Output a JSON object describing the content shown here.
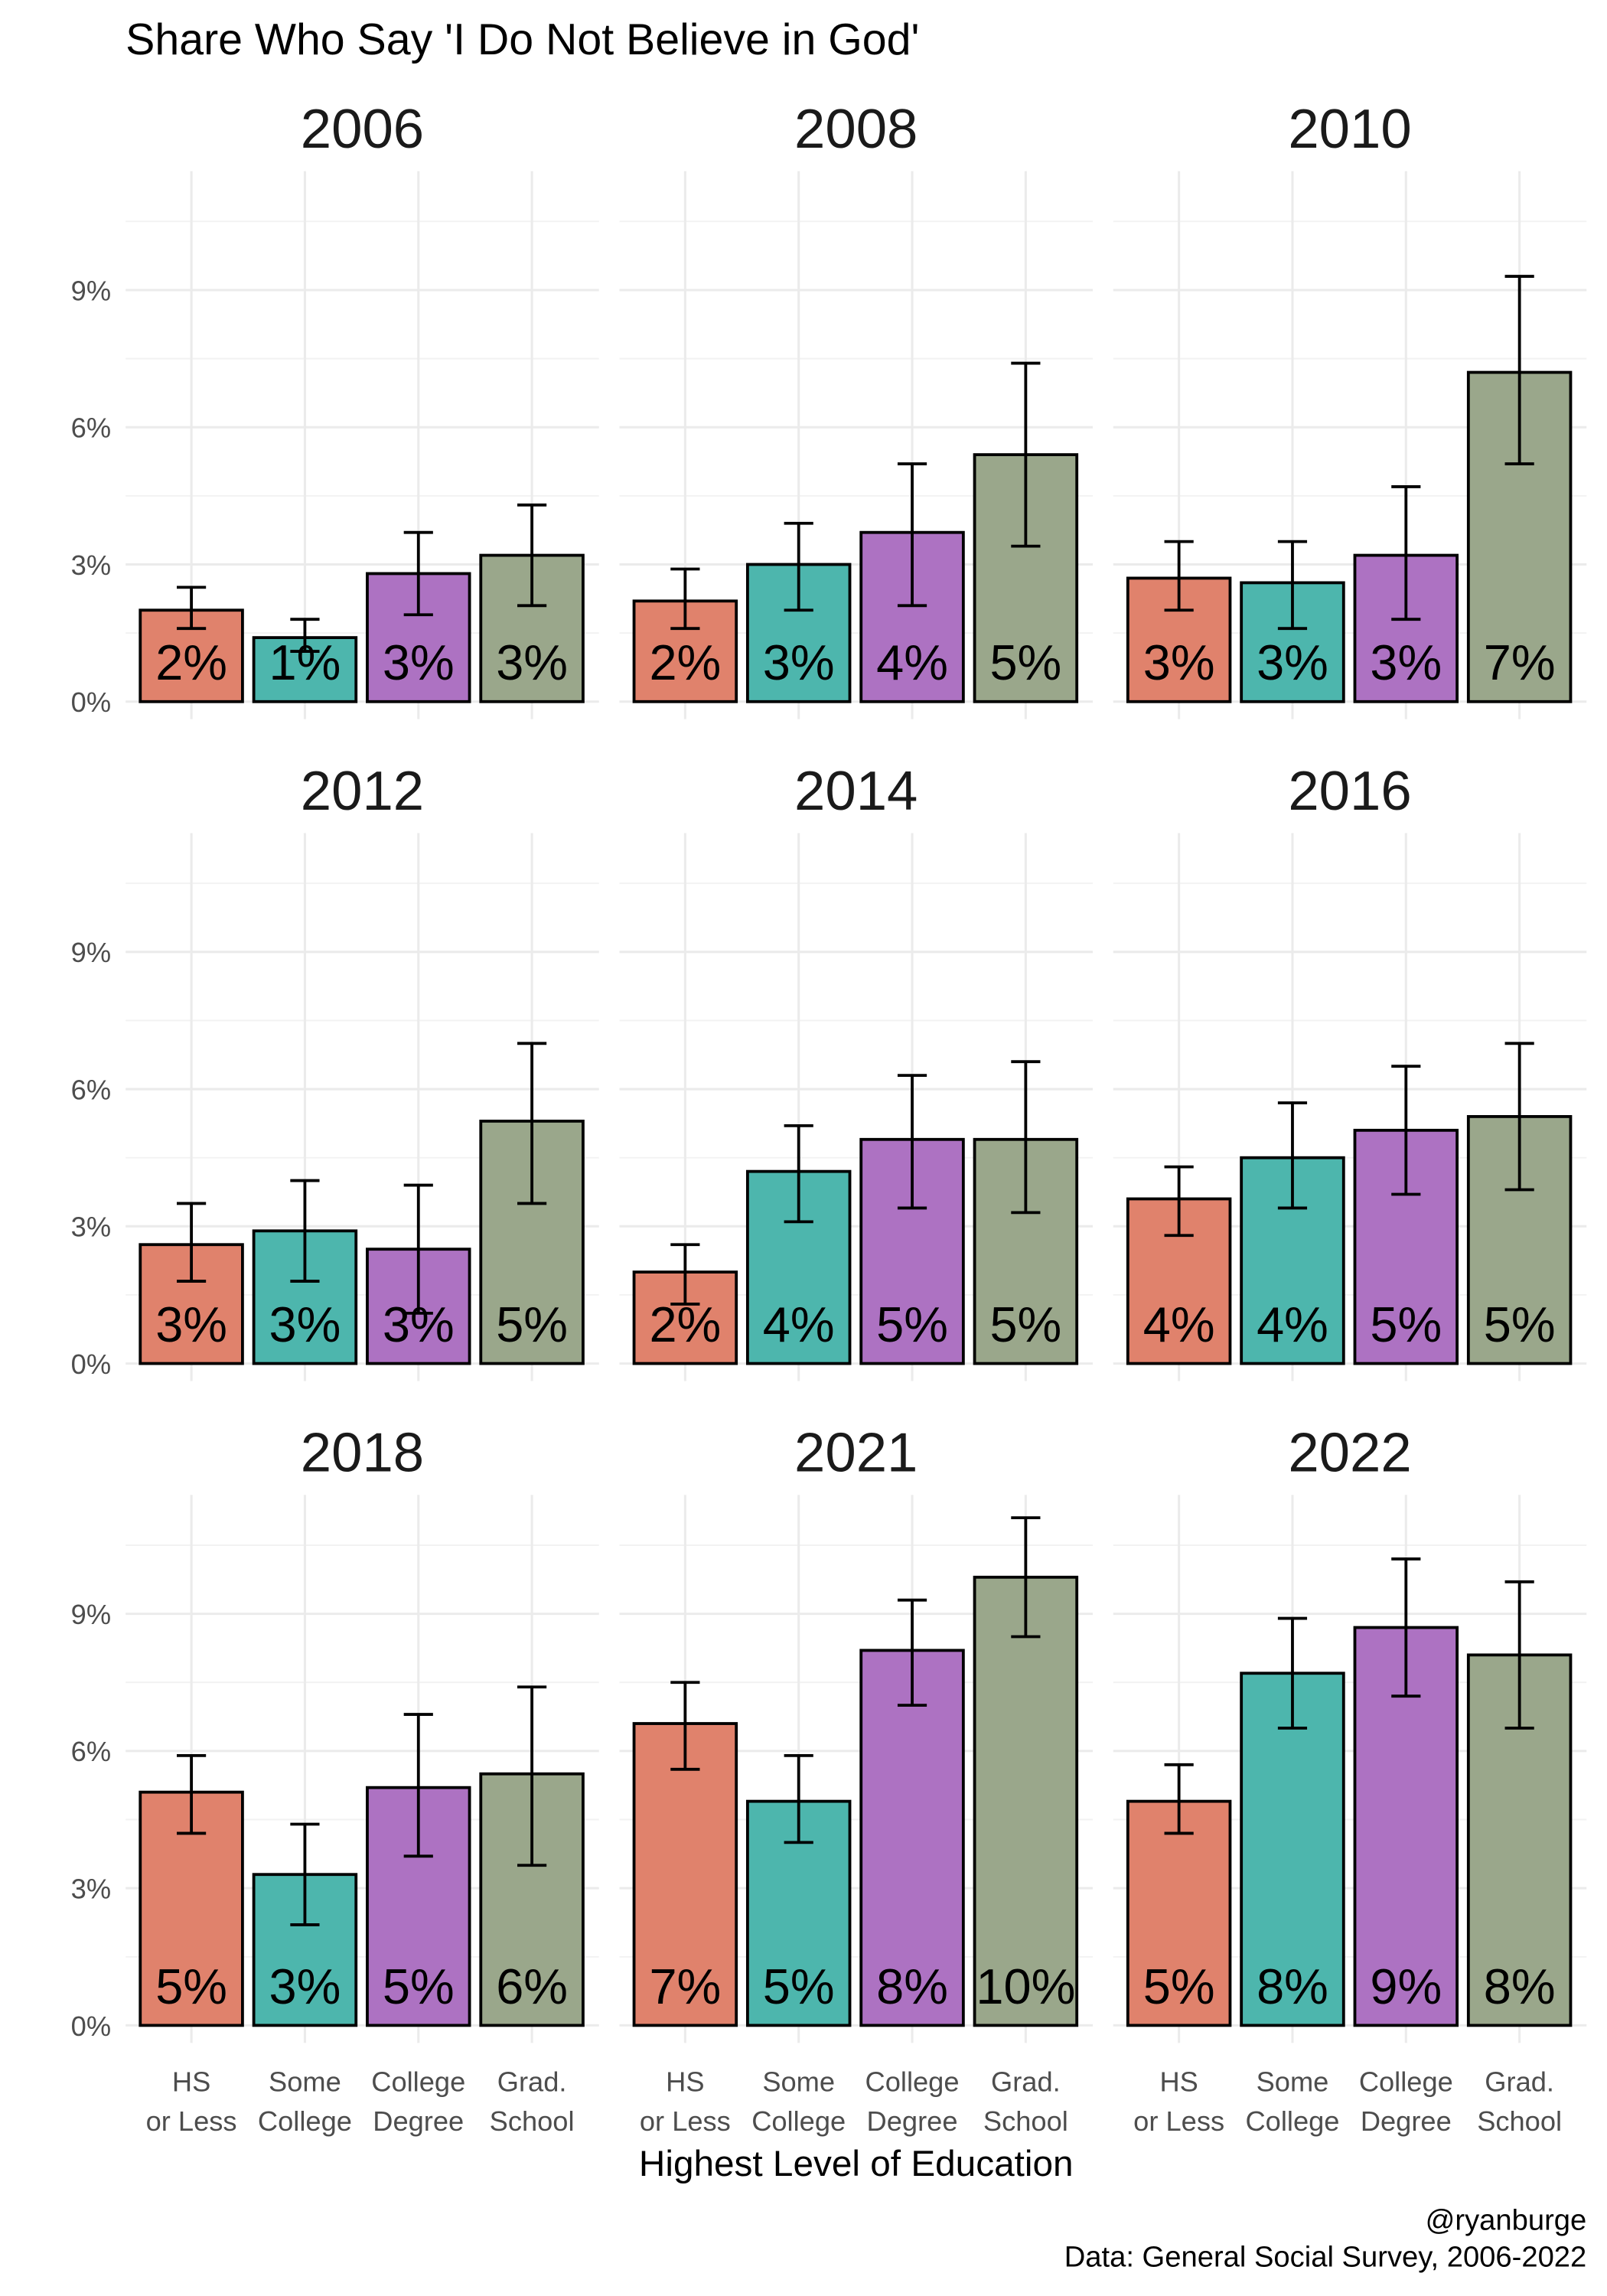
{
  "chart_data": {
    "type": "bar",
    "title": "Share Who Say 'I Do Not Believe in God'",
    "xlabel": "Highest Level of Education",
    "ylabel": "",
    "ylim": [
      0,
      11.6
    ],
    "yticks": [
      0,
      3,
      6,
      9
    ],
    "ytick_labels": [
      "0%",
      "3%",
      "6%",
      "9%"
    ],
    "grid": true,
    "categories": [
      "HS\nor Less",
      "Some\nCollege",
      "College\nDegree",
      "Grad.\nSchool"
    ],
    "category_lines": [
      [
        "HS",
        "or Less"
      ],
      [
        "Some",
        "College"
      ],
      [
        "College",
        "Degree"
      ],
      [
        "Grad.",
        "School"
      ]
    ],
    "colors": [
      "#E0826C",
      "#4DB6AD",
      "#AD72C2",
      "#9AA78B"
    ],
    "panels": [
      {
        "year": "2006",
        "values": [
          2.0,
          1.4,
          2.8,
          3.2
        ],
        "lower": [
          1.6,
          1.1,
          1.9,
          2.1
        ],
        "upper": [
          2.5,
          1.8,
          3.7,
          4.3
        ],
        "labels": [
          "2%",
          "1%",
          "3%",
          "3%"
        ]
      },
      {
        "year": "2008",
        "values": [
          2.2,
          3.0,
          3.7,
          5.4
        ],
        "lower": [
          1.6,
          2.0,
          2.1,
          3.4
        ],
        "upper": [
          2.9,
          3.9,
          5.2,
          7.4
        ],
        "labels": [
          "2%",
          "3%",
          "4%",
          "5%"
        ]
      },
      {
        "year": "2010",
        "values": [
          2.7,
          2.6,
          3.2,
          7.2
        ],
        "lower": [
          2.0,
          1.6,
          1.8,
          5.2
        ],
        "upper": [
          3.5,
          3.5,
          4.7,
          9.3
        ],
        "labels": [
          "3%",
          "3%",
          "3%",
          "7%"
        ]
      },
      {
        "year": "2012",
        "values": [
          2.6,
          2.9,
          2.5,
          5.3
        ],
        "lower": [
          1.8,
          1.8,
          1.1,
          3.5
        ],
        "upper": [
          3.5,
          4.0,
          3.9,
          7.0
        ],
        "labels": [
          "3%",
          "3%",
          "3%",
          "5%"
        ]
      },
      {
        "year": "2014",
        "values": [
          2.0,
          4.2,
          4.9,
          4.9
        ],
        "lower": [
          1.3,
          3.1,
          3.4,
          3.3
        ],
        "upper": [
          2.6,
          5.2,
          6.3,
          6.6
        ],
        "labels": [
          "2%",
          "4%",
          "5%",
          "5%"
        ]
      },
      {
        "year": "2016",
        "values": [
          3.6,
          4.5,
          5.1,
          5.4
        ],
        "lower": [
          2.8,
          3.4,
          3.7,
          3.8
        ],
        "upper": [
          4.3,
          5.7,
          6.5,
          7.0
        ],
        "labels": [
          "4%",
          "4%",
          "5%",
          "5%"
        ]
      },
      {
        "year": "2018",
        "values": [
          5.1,
          3.3,
          5.2,
          5.5
        ],
        "lower": [
          4.2,
          2.2,
          3.7,
          3.5
        ],
        "upper": [
          5.9,
          4.4,
          6.8,
          7.4
        ],
        "labels": [
          "5%",
          "3%",
          "5%",
          "6%"
        ]
      },
      {
        "year": "2021",
        "values": [
          6.6,
          4.9,
          8.2,
          9.8
        ],
        "lower": [
          5.6,
          4.0,
          7.0,
          8.5
        ],
        "upper": [
          7.5,
          5.9,
          9.3,
          11.1
        ],
        "labels": [
          "7%",
          "5%",
          "8%",
          "10%"
        ]
      },
      {
        "year": "2022",
        "values": [
          4.9,
          7.7,
          8.7,
          8.1
        ],
        "lower": [
          4.2,
          6.5,
          7.2,
          6.5
        ],
        "upper": [
          5.7,
          8.9,
          10.2,
          9.7
        ],
        "labels": [
          "5%",
          "8%",
          "9%",
          "8%"
        ]
      }
    ],
    "caption_lines": [
      "@ryanburge",
      "Data: General Social Survey, 2006-2022"
    ]
  }
}
